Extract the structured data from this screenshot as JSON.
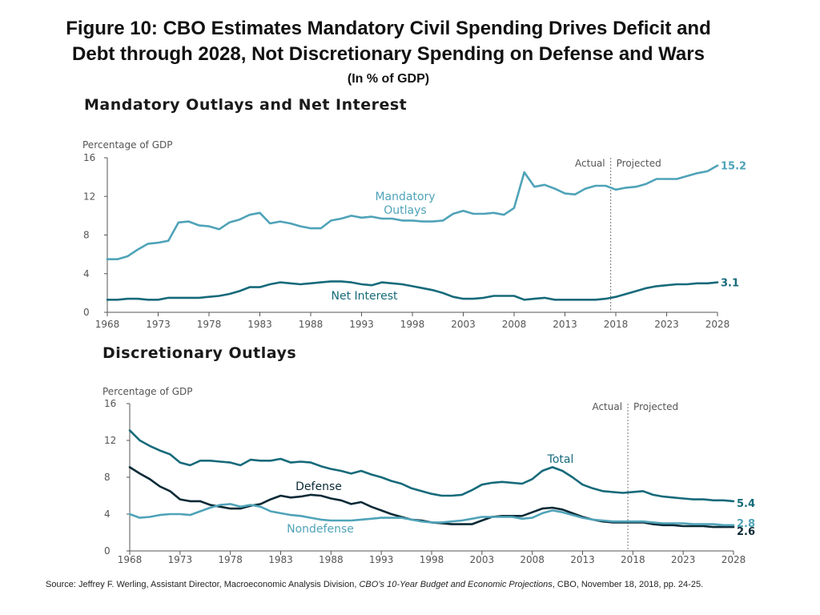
{
  "title_line1": "Figure 10: CBO Estimates Mandatory Civil Spending Drives Deficit and",
  "title_line2": "Debt through 2028, Not Discretionary Spending on Defense and Wars",
  "subtitle": "(In % of GDP)",
  "source": {
    "prefix": "Source:  Jeffrey F. Werling, Assistant Director, Macroeconomic Analysis Division, ",
    "italic": "CBO’s 10-Year Budget and Economic Projections",
    "suffix": ", CBO, November 18, 2018, pp. 24-25."
  },
  "colors": {
    "light": "#4fa3b8",
    "mid": "#166a7a",
    "dark": "#0b2a36",
    "axis": "#555555",
    "text": "#555555"
  },
  "chart_data": [
    {
      "type": "line",
      "title": "Mandatory Outlays and Net Interest",
      "ylabel": "Percentage of GDP",
      "ylim": [
        0,
        16
      ],
      "yticks": [
        "0",
        "4",
        "8",
        "12",
        "16"
      ],
      "xticks": [
        "1968",
        "1973",
        "1978",
        "1983",
        "1988",
        "1993",
        "1998",
        "2003",
        "2008",
        "2013",
        "2018",
        "2023",
        "2028"
      ],
      "actual_label": "Actual",
      "projected_label": "Projected",
      "divider_year": 2017.5,
      "x": [
        1968,
        1969,
        1970,
        1971,
        1972,
        1973,
        1974,
        1975,
        1976,
        1977,
        1978,
        1979,
        1980,
        1981,
        1982,
        1983,
        1984,
        1985,
        1986,
        1987,
        1988,
        1989,
        1990,
        1991,
        1992,
        1993,
        1994,
        1995,
        1996,
        1997,
        1998,
        1999,
        2000,
        2001,
        2002,
        2003,
        2004,
        2005,
        2006,
        2007,
        2008,
        2009,
        2010,
        2011,
        2012,
        2013,
        2014,
        2015,
        2016,
        2017,
        2018,
        2019,
        2020,
        2021,
        2022,
        2023,
        2024,
        2025,
        2026,
        2027,
        2028
      ],
      "series": [
        {
          "name": "Mandatory Outlays",
          "label_line1": "Mandatory",
          "label_line2": "Outlays",
          "end_label": "15.2",
          "color": "#4fa3b8",
          "values": [
            5.5,
            5.5,
            5.8,
            6.5,
            7.1,
            7.2,
            7.4,
            9.3,
            9.4,
            9.0,
            8.9,
            8.6,
            9.3,
            9.6,
            10.1,
            10.3,
            9.2,
            9.4,
            9.2,
            8.9,
            8.7,
            8.7,
            9.5,
            9.7,
            10.0,
            9.8,
            9.9,
            9.7,
            9.7,
            9.5,
            9.5,
            9.4,
            9.4,
            9.5,
            10.2,
            10.5,
            10.2,
            10.2,
            10.3,
            10.1,
            10.8,
            14.5,
            13.0,
            13.2,
            12.8,
            12.3,
            12.2,
            12.8,
            13.1,
            13.1,
            12.7,
            12.9,
            13.0,
            13.3,
            13.8,
            13.8,
            13.8,
            14.1,
            14.4,
            14.6,
            15.2
          ]
        },
        {
          "name": "Net Interest",
          "label_line1": "Net Interest",
          "end_label": "3.1",
          "color": "#166a7a",
          "values": [
            1.3,
            1.3,
            1.4,
            1.4,
            1.3,
            1.3,
            1.5,
            1.5,
            1.5,
            1.5,
            1.6,
            1.7,
            1.9,
            2.2,
            2.6,
            2.6,
            2.9,
            3.1,
            3.0,
            2.9,
            3.0,
            3.1,
            3.2,
            3.2,
            3.1,
            2.9,
            2.8,
            3.1,
            3.0,
            2.9,
            2.7,
            2.5,
            2.3,
            2.0,
            1.6,
            1.4,
            1.4,
            1.5,
            1.7,
            1.7,
            1.7,
            1.3,
            1.4,
            1.5,
            1.3,
            1.3,
            1.3,
            1.3,
            1.3,
            1.4,
            1.6,
            1.9,
            2.2,
            2.5,
            2.7,
            2.8,
            2.9,
            2.9,
            3.0,
            3.0,
            3.1
          ]
        }
      ]
    },
    {
      "type": "line",
      "title": "Discretionary Outlays",
      "ylabel": "Percentage of GDP",
      "ylim": [
        0,
        16
      ],
      "yticks": [
        "0",
        "4",
        "8",
        "12",
        "16"
      ],
      "xticks": [
        "1968",
        "1973",
        "1978",
        "1983",
        "1988",
        "1993",
        "1998",
        "2003",
        "2008",
        "2013",
        "2018",
        "2023",
        "2028"
      ],
      "actual_label": "Actual",
      "projected_label": "Projected",
      "divider_year": 2017.5,
      "x": [
        1968,
        1969,
        1970,
        1971,
        1972,
        1973,
        1974,
        1975,
        1976,
        1977,
        1978,
        1979,
        1980,
        1981,
        1982,
        1983,
        1984,
        1985,
        1986,
        1987,
        1988,
        1989,
        1990,
        1991,
        1992,
        1993,
        1994,
        1995,
        1996,
        1997,
        1998,
        1999,
        2000,
        2001,
        2002,
        2003,
        2004,
        2005,
        2006,
        2007,
        2008,
        2009,
        2010,
        2011,
        2012,
        2013,
        2014,
        2015,
        2016,
        2017,
        2018,
        2019,
        2020,
        2021,
        2022,
        2023,
        2024,
        2025,
        2026,
        2027,
        2028
      ],
      "series": [
        {
          "name": "Total",
          "label_line1": "Total",
          "end_label": "5.4",
          "color": "#166a7a",
          "values": [
            13.1,
            12.0,
            11.4,
            10.9,
            10.5,
            9.6,
            9.3,
            9.8,
            9.8,
            9.7,
            9.6,
            9.3,
            9.9,
            9.8,
            9.8,
            10.0,
            9.6,
            9.7,
            9.6,
            9.2,
            8.9,
            8.7,
            8.4,
            8.7,
            8.3,
            8.0,
            7.6,
            7.3,
            6.8,
            6.5,
            6.2,
            6.0,
            6.0,
            6.1,
            6.6,
            7.2,
            7.4,
            7.5,
            7.4,
            7.3,
            7.8,
            8.7,
            9.1,
            8.7,
            8.0,
            7.2,
            6.8,
            6.5,
            6.4,
            6.3,
            6.4,
            6.5,
            6.1,
            5.9,
            5.8,
            5.7,
            5.6,
            5.6,
            5.5,
            5.5,
            5.4
          ]
        },
        {
          "name": "Defense",
          "label_line1": "Defense",
          "end_label": "2.6",
          "color": "#0b2a36",
          "values": [
            9.1,
            8.4,
            7.8,
            7.0,
            6.5,
            5.6,
            5.4,
            5.4,
            5.0,
            4.8,
            4.6,
            4.6,
            4.9,
            5.1,
            5.6,
            6.0,
            5.8,
            5.9,
            6.1,
            6.0,
            5.7,
            5.5,
            5.1,
            5.3,
            4.8,
            4.4,
            4.0,
            3.7,
            3.4,
            3.3,
            3.1,
            3.0,
            2.9,
            2.9,
            2.9,
            3.3,
            3.7,
            3.8,
            3.8,
            3.8,
            4.2,
            4.6,
            4.7,
            4.5,
            4.1,
            3.7,
            3.4,
            3.2,
            3.1,
            3.1,
            3.1,
            3.1,
            2.9,
            2.8,
            2.8,
            2.7,
            2.7,
            2.7,
            2.6,
            2.6,
            2.6
          ]
        },
        {
          "name": "Nondefense",
          "label_line1": "Nondefense",
          "end_label": "2.8",
          "color": "#4fa3b8",
          "values": [
            4.0,
            3.6,
            3.7,
            3.9,
            4.0,
            4.0,
            3.9,
            4.3,
            4.7,
            5.0,
            5.1,
            4.8,
            5.0,
            4.8,
            4.3,
            4.1,
            3.9,
            3.8,
            3.6,
            3.4,
            3.3,
            3.3,
            3.3,
            3.4,
            3.5,
            3.6,
            3.6,
            3.6,
            3.4,
            3.2,
            3.1,
            3.1,
            3.2,
            3.3,
            3.5,
            3.7,
            3.7,
            3.7,
            3.7,
            3.5,
            3.6,
            4.1,
            4.4,
            4.2,
            3.9,
            3.6,
            3.4,
            3.3,
            3.2,
            3.2,
            3.2,
            3.2,
            3.1,
            3.0,
            3.0,
            3.0,
            2.9,
            2.9,
            2.9,
            2.8,
            2.8
          ]
        }
      ]
    }
  ]
}
